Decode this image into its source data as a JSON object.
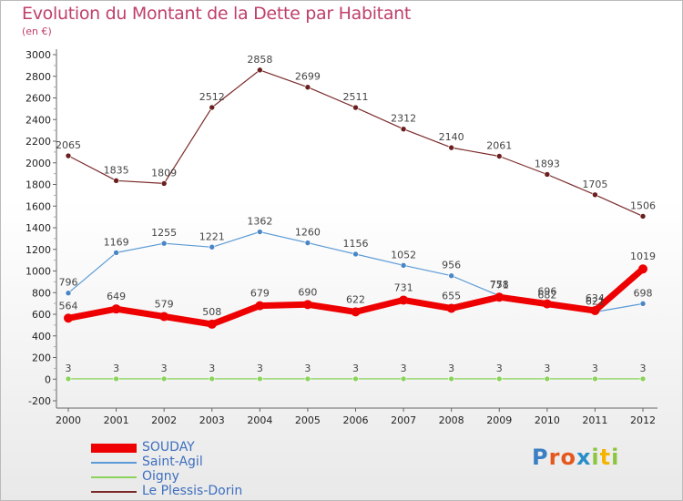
{
  "title": "Evolution du Montant de la Dette par Habitant",
  "subtitle": "(en €)",
  "logo": {
    "letters": [
      "P",
      "r",
      "o",
      "x",
      "i",
      "t",
      "i"
    ],
    "colors": [
      "#3a7fc4",
      "#e4581e",
      "#e4581e",
      "#2a8ec9",
      "#8cc63f",
      "#f5b400",
      "#8cc63f"
    ]
  },
  "chart_data": {
    "type": "line",
    "title": "Evolution du Montant de la Dette par Habitant",
    "ylabel": "(en €)",
    "x": [
      "2000",
      "2001",
      "2002",
      "2003",
      "2004",
      "2005",
      "2006",
      "2007",
      "2008",
      "2009",
      "2010",
      "2011",
      "2012"
    ],
    "ylim": [
      -200,
      3000
    ],
    "yticks": [
      "-200",
      "0",
      "200",
      "400",
      "600",
      "800",
      "1000",
      "1200",
      "1400",
      "1600",
      "1800",
      "2000",
      "2200",
      "2400",
      "2600",
      "2800",
      "3000"
    ],
    "grid": false,
    "legend_position": "bottom-left",
    "series": [
      {
        "name": "SOUDAY",
        "color": "#ee0000",
        "values": [
          564,
          649,
          579,
          508,
          679,
          690,
          622,
          731,
          655,
          758,
          696,
          634,
          1019
        ],
        "labels": [
          "564",
          "649",
          "579",
          "508",
          "679",
          "690",
          "622",
          "731",
          "655",
          "758",
          "696",
          "634",
          "1019"
        ]
      },
      {
        "name": "Saint-Agil",
        "color": "#5b9bd5",
        "values": [
          796,
          1169,
          1255,
          1221,
          1362,
          1260,
          1156,
          1052,
          956,
          771,
          682,
          621,
          698
        ],
        "labels": [
          "796",
          "1169",
          "1255",
          "1221",
          "1362",
          "1260",
          "1156",
          "1052",
          "956",
          "771",
          "682",
          "621",
          "698"
        ]
      },
      {
        "name": "Oigny",
        "color": "#8bd35b",
        "values": [
          3,
          3,
          3,
          3,
          3,
          3,
          3,
          3,
          3,
          3,
          3,
          3,
          3
        ],
        "labels": [
          "3",
          "3",
          "3",
          "3",
          "3",
          "3",
          "3",
          "3",
          "3",
          "3",
          "3",
          "3",
          "3"
        ]
      },
      {
        "name": "Le Plessis-Dorin",
        "color": "#7b2a2a",
        "values": [
          2065,
          1835,
          1809,
          2512,
          2858,
          2699,
          2511,
          2312,
          2140,
          2061,
          1893,
          1705,
          1506
        ],
        "labels": [
          "2065",
          "1835",
          "1809",
          "2512",
          "2858",
          "2699",
          "2511",
          "2312",
          "2140",
          "2061",
          "1893",
          "1705",
          "1506"
        ]
      }
    ]
  }
}
